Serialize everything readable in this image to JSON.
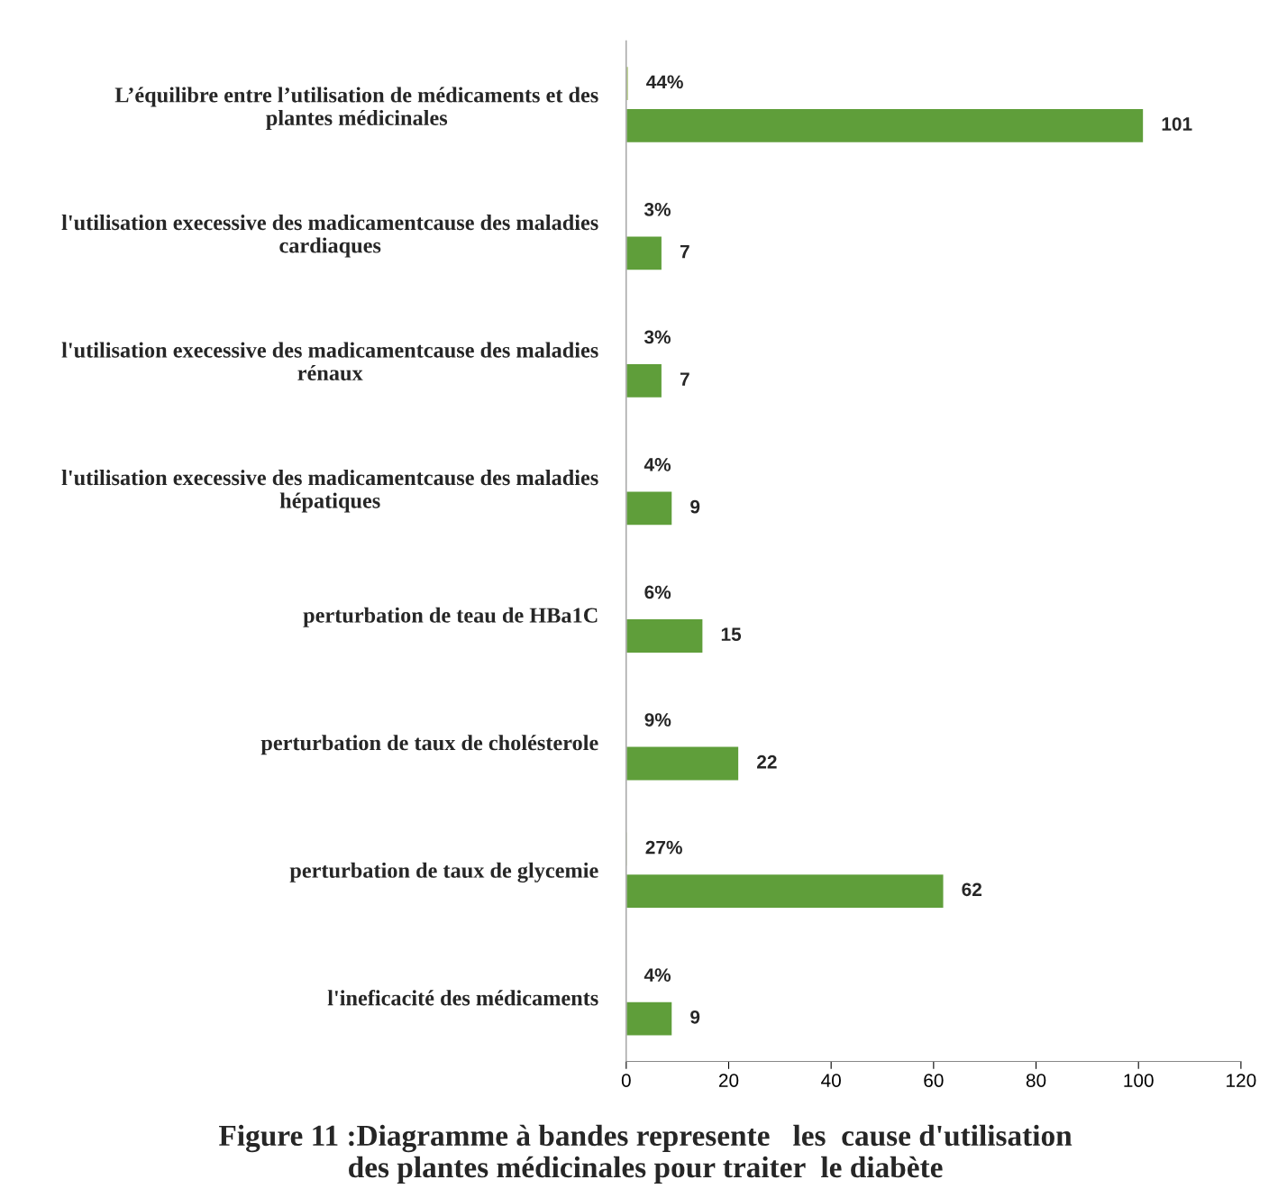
{
  "chart_data": {
    "type": "bar",
    "orientation": "horizontal",
    "title": "Figure 11 :Diagramme à bandes represente   les  cause d'utilisation\ndes plantes médicinales pour traiter  le diabète",
    "categories": [
      "L’équilibre entre l’utilisation de médicaments et des\nplantes médicinales",
      "l'utilisation execessive des madicamentcause des maladies\ncardiaques",
      "l'utilisation execessive des madicamentcause des maladies\nrénaux",
      "l'utilisation execessive des madicamentcause des maladies\nhépatiques",
      "perturbation de teau de HBa1C",
      "perturbation de taux de cholésterole",
      "perturbation de taux de glycemie",
      "l'ineficacité des médicaments"
    ],
    "series": [
      {
        "color": "#9bbb59",
        "values": [
          0.44,
          0.03,
          0.03,
          0.04,
          0.06,
          0.09,
          0.27,
          0.04
        ],
        "value_labels": [
          "44%",
          "3%",
          "3%",
          "4%",
          "6%",
          "9%",
          "27%",
          "4%"
        ]
      },
      {
        "color": "#5f9e3a",
        "values": [
          101,
          7,
          7,
          9,
          15,
          22,
          62,
          9
        ],
        "value_labels": [
          "101",
          "7",
          "7",
          "9",
          "15",
          "22",
          "62",
          "9"
        ]
      }
    ],
    "xlim": [
      0,
      120
    ],
    "xticks": [
      0,
      20,
      40,
      60,
      80,
      100,
      120
    ],
    "grid": false,
    "legend": false
  }
}
